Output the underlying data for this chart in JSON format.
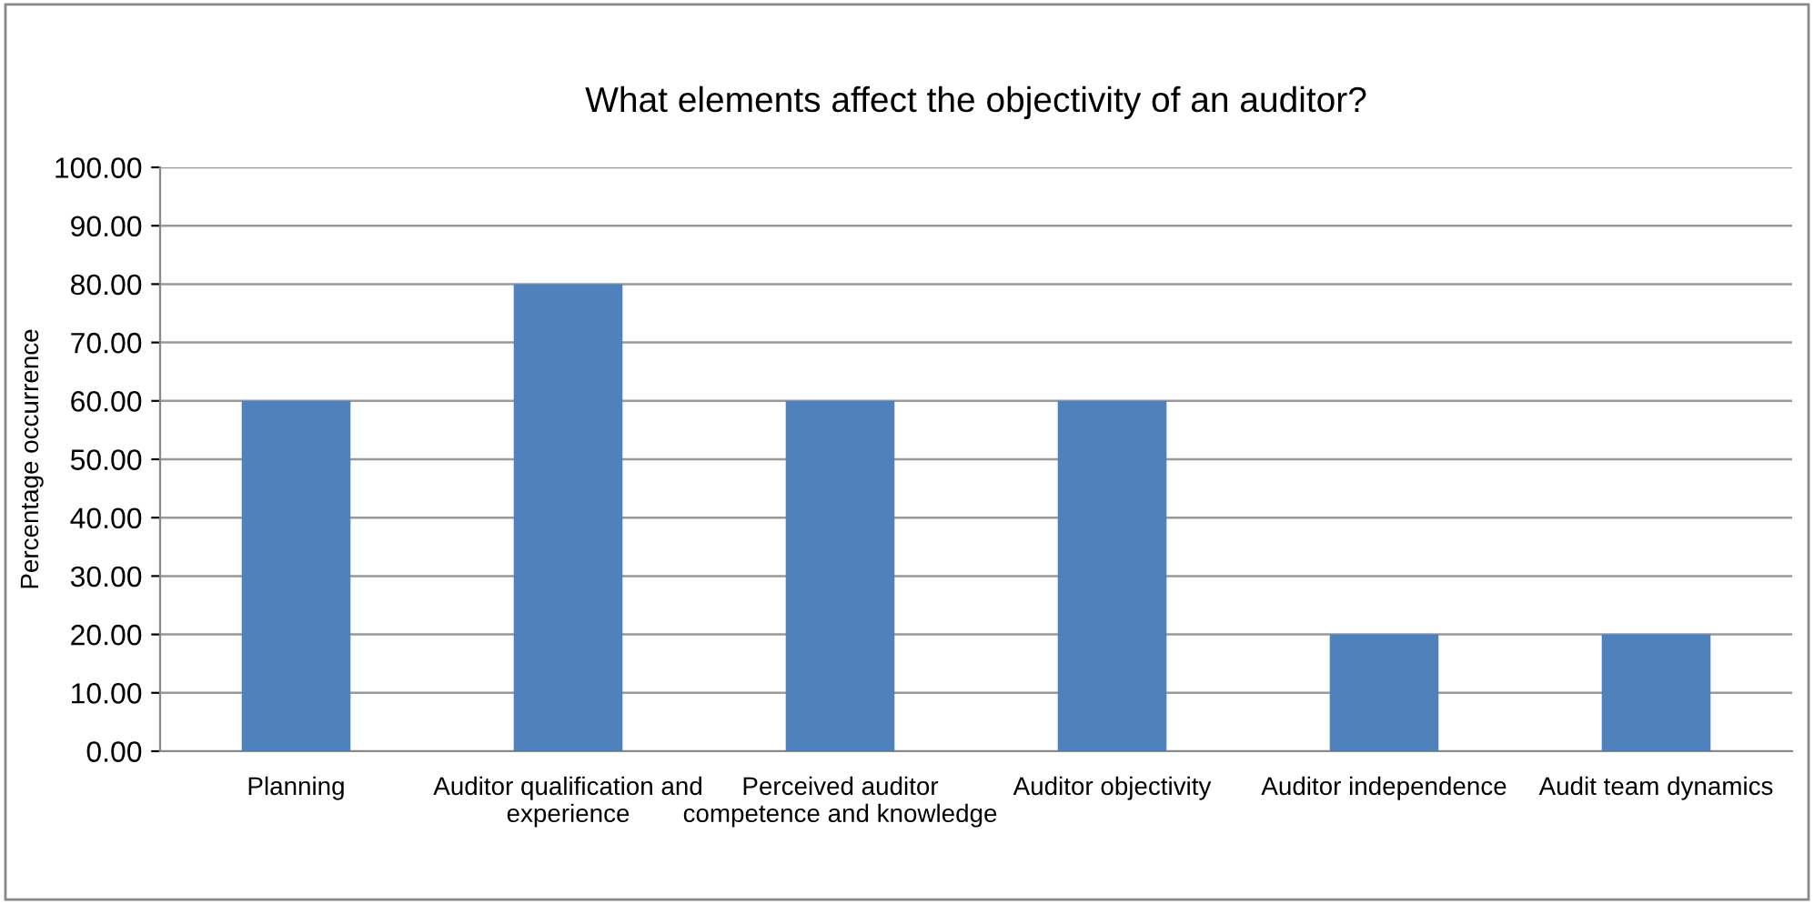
{
  "chart_data": {
    "type": "bar",
    "title": "What elements affect the objectivity of an auditor?",
    "ylabel": "Percentage occurrence",
    "categories": [
      "Planning",
      "Auditor qualification and\nexperience",
      "Perceived auditor\ncompetence and knowledge",
      "Auditor objectivity",
      "Auditor independence",
      "Audit team dynamics"
    ],
    "values": [
      60,
      80,
      60,
      60,
      20,
      20
    ],
    "color": "#4f81bd",
    "ylim": [
      0,
      100
    ],
    "yticks": [
      {
        "value": 0,
        "label": "0.00"
      },
      {
        "value": 10,
        "label": "10.00"
      },
      {
        "value": 20,
        "label": "20.00"
      },
      {
        "value": 30,
        "label": "30.00"
      },
      {
        "value": 40,
        "label": "40.00"
      },
      {
        "value": 50,
        "label": "50.00"
      },
      {
        "value": 60,
        "label": "60.00"
      },
      {
        "value": 70,
        "label": "70.00"
      },
      {
        "value": 80,
        "label": "80.00"
      },
      {
        "value": 90,
        "label": "90.00"
      },
      {
        "value": 100,
        "label": "100.00"
      }
    ],
    "grid": "y"
  }
}
